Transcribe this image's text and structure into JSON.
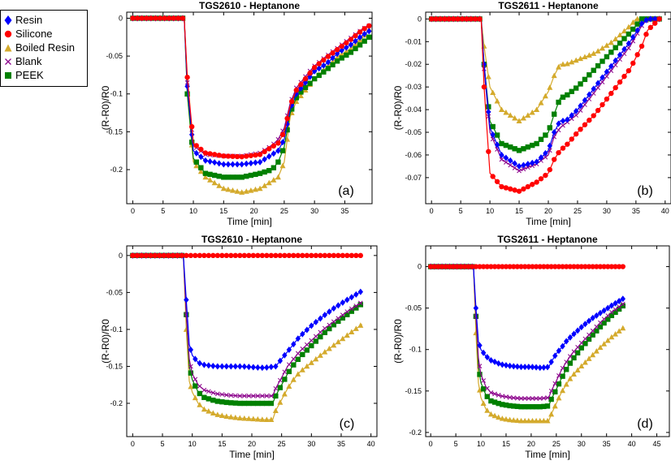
{
  "legend": [
    {
      "name": "Resin",
      "color": "#0000ff",
      "marker": "diamond"
    },
    {
      "name": "Silicone",
      "color": "#ff0000",
      "marker": "circle"
    },
    {
      "name": "Boiled Resin",
      "color": "#d4aa2c",
      "marker": "triangle"
    },
    {
      "name": "Blank",
      "color": "#8b008b",
      "marker": "x"
    },
    {
      "name": "PEEK",
      "color": "#008000",
      "marker": "square"
    }
  ],
  "chart_data": [
    {
      "type": "line",
      "panel": "(a)",
      "title": "TGS2610 - Heptanone",
      "xlabel": "Time [min]",
      "ylabel": "(R-R0)/R0",
      "xlim": [
        -1,
        39.5
      ],
      "ylim": [
        -0.245,
        0.008
      ],
      "xticks": [
        0,
        5,
        10,
        15,
        20,
        25,
        30,
        35
      ],
      "yticks": [
        0,
        -0.05,
        -0.1,
        -0.15,
        -0.2
      ],
      "ytick_labels": [
        "0",
        "-0.05",
        "-0.1",
        "-0.15",
        "-0.2"
      ],
      "series": [
        {
          "name": "Resin",
          "x": [
            0,
            8.5,
            9,
            10,
            12,
            15,
            18,
            21,
            23,
            24,
            25,
            26,
            27,
            28,
            29,
            30,
            32,
            34,
            36,
            38,
            39
          ],
          "values": [
            0,
            0,
            -0.09,
            -0.175,
            -0.188,
            -0.193,
            -0.193,
            -0.19,
            -0.18,
            -0.175,
            -0.16,
            -0.12,
            -0.1,
            -0.09,
            -0.08,
            -0.07,
            -0.06,
            -0.045,
            -0.035,
            -0.022,
            -0.017
          ]
        },
        {
          "name": "Silicone",
          "x": [
            0,
            8.5,
            9,
            10,
            12,
            15,
            18,
            21,
            23,
            24,
            25,
            26,
            27,
            28,
            29,
            30,
            32,
            34,
            36,
            38,
            39
          ],
          "values": [
            0,
            0,
            -0.078,
            -0.165,
            -0.178,
            -0.182,
            -0.183,
            -0.18,
            -0.17,
            -0.165,
            -0.15,
            -0.115,
            -0.095,
            -0.085,
            -0.075,
            -0.065,
            -0.052,
            -0.04,
            -0.028,
            -0.015,
            -0.01
          ]
        },
        {
          "name": "Boiled Resin",
          "x": [
            0,
            8.5,
            9,
            10,
            12,
            15,
            18,
            21,
            23,
            24,
            25,
            26,
            27,
            28,
            29,
            30,
            32,
            34,
            36,
            38,
            39
          ],
          "values": [
            0,
            0,
            -0.1,
            -0.19,
            -0.21,
            -0.225,
            -0.23,
            -0.225,
            -0.215,
            -0.21,
            -0.19,
            -0.13,
            -0.11,
            -0.1,
            -0.09,
            -0.08,
            -0.065,
            -0.05,
            -0.04,
            -0.025,
            -0.015
          ]
        },
        {
          "name": "Blank",
          "x": [
            0,
            8.5,
            9,
            10,
            12,
            15,
            18,
            21,
            23,
            24,
            25,
            26,
            27,
            28,
            29,
            30,
            32,
            34,
            36,
            38,
            39
          ],
          "values": [
            0,
            0,
            -0.085,
            -0.168,
            -0.18,
            -0.182,
            -0.182,
            -0.178,
            -0.168,
            -0.16,
            -0.145,
            -0.112,
            -0.092,
            -0.082,
            -0.072,
            -0.063,
            -0.05,
            -0.038,
            -0.026,
            -0.014,
            -0.01
          ]
        },
        {
          "name": "PEEK",
          "x": [
            0,
            8.5,
            9,
            10,
            12,
            15,
            18,
            21,
            23,
            24,
            25,
            26,
            27,
            28,
            29,
            30,
            32,
            34,
            36,
            38,
            39
          ],
          "values": [
            0,
            0,
            -0.1,
            -0.185,
            -0.205,
            -0.21,
            -0.21,
            -0.205,
            -0.2,
            -0.19,
            -0.17,
            -0.125,
            -0.105,
            -0.095,
            -0.088,
            -0.08,
            -0.068,
            -0.055,
            -0.045,
            -0.032,
            -0.025
          ]
        }
      ]
    },
    {
      "type": "line",
      "panel": "(b)",
      "title": "TGS2611 - Heptanone",
      "xlabel": "Time [min]",
      "ylabel": "(R-R0)/R0",
      "xlim": [
        -1,
        41
      ],
      "ylim": [
        -0.0815,
        0.003
      ],
      "xticks": [
        0,
        5,
        10,
        15,
        20,
        25,
        30,
        35,
        40
      ],
      "yticks": [
        0,
        -0.01,
        -0.02,
        -0.03,
        -0.04,
        -0.05,
        -0.06,
        -0.07
      ],
      "ytick_labels": [
        "0",
        "-0.01",
        "-0.02",
        "-0.03",
        "-0.04",
        "-0.05",
        "-0.06",
        "-0.07"
      ],
      "series": [
        {
          "name": "Resin",
          "x": [
            0,
            8.5,
            9,
            10,
            12,
            15,
            18,
            20,
            21,
            22,
            23,
            25,
            28,
            31,
            34,
            36,
            37,
            39
          ],
          "values": [
            0,
            0,
            -0.02,
            -0.048,
            -0.06,
            -0.065,
            -0.063,
            -0.058,
            -0.05,
            -0.045,
            -0.045,
            -0.04,
            -0.03,
            -0.02,
            -0.01,
            -0.002,
            0,
            0
          ]
        },
        {
          "name": "Silicone",
          "x": [
            0,
            8.5,
            9,
            10,
            12,
            15,
            18,
            20,
            21,
            22,
            23,
            25,
            28,
            31,
            34,
            36,
            37,
            39
          ],
          "values": [
            0,
            0,
            -0.03,
            -0.068,
            -0.074,
            -0.076,
            -0.072,
            -0.068,
            -0.062,
            -0.058,
            -0.056,
            -0.05,
            -0.042,
            -0.032,
            -0.022,
            -0.012,
            -0.005,
            0
          ]
        },
        {
          "name": "Boiled Resin",
          "x": [
            0,
            8.5,
            9,
            10,
            12,
            15,
            18,
            20,
            21,
            22,
            23,
            25,
            28,
            31,
            34,
            35,
            37
          ],
          "values": [
            0,
            0,
            -0.012,
            -0.03,
            -0.04,
            -0.045,
            -0.04,
            -0.032,
            -0.025,
            -0.02,
            -0.02,
            -0.018,
            -0.015,
            -0.01,
            -0.003,
            0,
            0
          ]
        },
        {
          "name": "Blank",
          "x": [
            0,
            8.5,
            9,
            10,
            12,
            15,
            18,
            20,
            21,
            22,
            23,
            25,
            28,
            31,
            34,
            36,
            37,
            39
          ],
          "values": [
            0,
            0,
            -0.022,
            -0.05,
            -0.062,
            -0.067,
            -0.064,
            -0.06,
            -0.052,
            -0.048,
            -0.046,
            -0.042,
            -0.032,
            -0.022,
            -0.012,
            -0.003,
            0,
            0
          ]
        },
        {
          "name": "PEEK",
          "x": [
            0,
            8.5,
            9,
            10,
            12,
            15,
            18,
            20,
            21,
            22,
            23,
            25,
            28,
            31,
            34,
            36,
            37,
            39
          ],
          "values": [
            0,
            0,
            -0.02,
            -0.045,
            -0.055,
            -0.058,
            -0.055,
            -0.05,
            -0.042,
            -0.035,
            -0.034,
            -0.03,
            -0.022,
            -0.014,
            -0.006,
            0,
            0,
            0
          ]
        }
      ]
    },
    {
      "type": "line",
      "panel": "(c)",
      "title": "TGS2610 - Heptanone",
      "xlabel": "Time [min]",
      "ylabel": "(R-R0)/R0",
      "xlim": [
        -1,
        41
      ],
      "ylim": [
        -0.245,
        0.013
      ],
      "xticks": [
        0,
        5,
        10,
        15,
        20,
        25,
        30,
        35,
        40
      ],
      "yticks": [
        0,
        -0.05,
        -0.1,
        -0.15,
        -0.2
      ],
      "ytick_labels": [
        "0",
        "-0.05",
        "-0.1",
        "-0.15",
        "-0.2"
      ],
      "series": [
        {
          "name": "Resin",
          "x": [
            0,
            8.5,
            9,
            9.5,
            10,
            11,
            12,
            14,
            16,
            18,
            20,
            22,
            24,
            25,
            26,
            27,
            28,
            30,
            32,
            34,
            36,
            38.5
          ],
          "values": [
            0,
            0,
            -0.06,
            -0.12,
            -0.135,
            -0.145,
            -0.148,
            -0.15,
            -0.15,
            -0.15,
            -0.151,
            -0.152,
            -0.15,
            -0.14,
            -0.13,
            -0.12,
            -0.11,
            -0.095,
            -0.082,
            -0.07,
            -0.06,
            -0.048
          ]
        },
        {
          "name": "Silicone",
          "x": [
            0,
            9,
            12,
            15,
            18,
            21,
            24,
            27,
            30,
            33,
            36,
            38.5
          ],
          "values": [
            0,
            0,
            0,
            0,
            0,
            0,
            0,
            0,
            0,
            0,
            0,
            0
          ]
        },
        {
          "name": "Boiled Resin",
          "x": [
            0,
            8.5,
            9,
            9.5,
            10,
            11,
            12,
            14,
            16,
            18,
            20,
            22,
            23.5,
            24,
            25,
            26,
            27,
            28,
            30,
            32,
            34,
            36,
            38.5
          ],
          "values": [
            0,
            0,
            -0.1,
            -0.17,
            -0.185,
            -0.2,
            -0.208,
            -0.215,
            -0.218,
            -0.22,
            -0.221,
            -0.222,
            -0.222,
            -0.21,
            -0.195,
            -0.18,
            -0.168,
            -0.158,
            -0.145,
            -0.132,
            -0.12,
            -0.108,
            -0.093
          ]
        },
        {
          "name": "Blank",
          "x": [
            0,
            8.5,
            9,
            9.5,
            10,
            11,
            12,
            14,
            16,
            18,
            20,
            22,
            23.5,
            24,
            25,
            26,
            27,
            28,
            30,
            32,
            34,
            36,
            38.5
          ],
          "values": [
            0,
            0,
            -0.08,
            -0.14,
            -0.16,
            -0.175,
            -0.182,
            -0.187,
            -0.189,
            -0.19,
            -0.19,
            -0.19,
            -0.19,
            -0.18,
            -0.165,
            -0.15,
            -0.14,
            -0.13,
            -0.115,
            -0.1,
            -0.088,
            -0.076,
            -0.063
          ]
        },
        {
          "name": "PEEK",
          "x": [
            0,
            8.5,
            9,
            9.5,
            10,
            11,
            12,
            14,
            16,
            18,
            20,
            22,
            23.5,
            24,
            25,
            26,
            27,
            28,
            30,
            32,
            34,
            36,
            38.5
          ],
          "values": [
            0,
            0,
            -0.08,
            -0.15,
            -0.168,
            -0.185,
            -0.192,
            -0.197,
            -0.199,
            -0.2,
            -0.2,
            -0.2,
            -0.2,
            -0.19,
            -0.175,
            -0.16,
            -0.148,
            -0.138,
            -0.122,
            -0.106,
            -0.092,
            -0.08,
            -0.065
          ]
        }
      ]
    },
    {
      "type": "line",
      "panel": "(d)",
      "title": "TGS2611 - Heptanone",
      "xlabel": "Time [min]",
      "ylabel": "(R-R0)/R0",
      "xlim": [
        -1,
        47.5
      ],
      "ylim": [
        -0.205,
        0.025
      ],
      "xticks": [
        0,
        5,
        10,
        15,
        20,
        25,
        30,
        35,
        40,
        45
      ],
      "yticks": [
        0,
        -0.05,
        -0.1,
        -0.15,
        -0.2
      ],
      "ytick_labels": [
        "0",
        "-0.05",
        "-0.1",
        "-0.15",
        "-0.2"
      ],
      "series": [
        {
          "name": "Resin",
          "x": [
            0,
            8.5,
            9,
            9.5,
            10,
            11,
            12,
            14,
            16,
            18,
            20,
            22,
            23.5,
            24,
            25,
            26,
            27,
            28,
            30,
            32,
            34,
            36,
            38.5
          ],
          "values": [
            0,
            0,
            -0.05,
            -0.09,
            -0.1,
            -0.108,
            -0.113,
            -0.118,
            -0.12,
            -0.121,
            -0.121,
            -0.122,
            -0.121,
            -0.115,
            -0.105,
            -0.098,
            -0.09,
            -0.084,
            -0.073,
            -0.063,
            -0.055,
            -0.047,
            -0.038
          ]
        },
        {
          "name": "Silicone",
          "x": [
            0,
            9,
            12,
            15,
            18,
            21,
            24,
            27,
            30,
            33,
            36,
            38.5
          ],
          "values": [
            0,
            0,
            0,
            0,
            0,
            0,
            0,
            0,
            0,
            0,
            0,
            0
          ]
        },
        {
          "name": "Boiled Resin",
          "x": [
            0,
            8.5,
            9,
            9.5,
            10,
            11,
            12,
            14,
            16,
            18,
            20,
            22,
            23.5,
            24,
            25,
            26,
            27,
            28,
            30,
            32,
            34,
            36,
            38.5
          ],
          "values": [
            0,
            0,
            -0.08,
            -0.14,
            -0.158,
            -0.172,
            -0.178,
            -0.183,
            -0.185,
            -0.186,
            -0.186,
            -0.186,
            -0.186,
            -0.178,
            -0.165,
            -0.152,
            -0.142,
            -0.133,
            -0.12,
            -0.108,
            -0.096,
            -0.085,
            -0.073
          ]
        },
        {
          "name": "Blank",
          "x": [
            0,
            8.5,
            9,
            9.5,
            10,
            11,
            12,
            14,
            16,
            18,
            20,
            22,
            23.5,
            24,
            25,
            26,
            27,
            28,
            30,
            32,
            34,
            36,
            38.5
          ],
          "values": [
            0,
            0,
            -0.06,
            -0.11,
            -0.13,
            -0.145,
            -0.152,
            -0.156,
            -0.158,
            -0.159,
            -0.159,
            -0.159,
            -0.158,
            -0.15,
            -0.138,
            -0.125,
            -0.115,
            -0.106,
            -0.092,
            -0.079,
            -0.066,
            -0.055,
            -0.044
          ]
        },
        {
          "name": "PEEK",
          "x": [
            0,
            8.5,
            9,
            9.5,
            10,
            11,
            12,
            14,
            16,
            18,
            20,
            22,
            23.5,
            24,
            25,
            26,
            27,
            28,
            30,
            32,
            34,
            36,
            38.5
          ],
          "values": [
            0,
            0,
            -0.06,
            -0.12,
            -0.14,
            -0.155,
            -0.162,
            -0.166,
            -0.168,
            -0.169,
            -0.169,
            -0.169,
            -0.168,
            -0.16,
            -0.148,
            -0.135,
            -0.124,
            -0.114,
            -0.098,
            -0.084,
            -0.071,
            -0.059,
            -0.046
          ]
        }
      ]
    }
  ]
}
